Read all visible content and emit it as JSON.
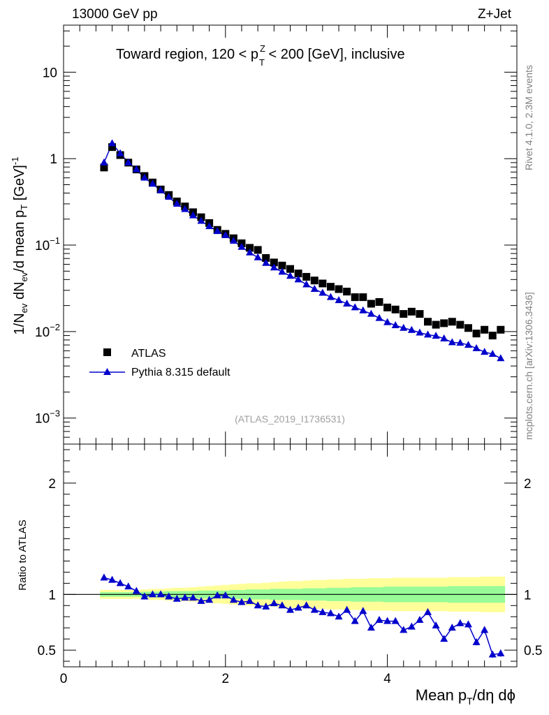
{
  "header": {
    "energy_label": "13000 GeV pp",
    "process_label": "Z+Jet"
  },
  "side_labels": {
    "rivet": "Rivet 4.1.0,  2.3M events",
    "mcplots": "mcplots.cern.ch [arXiv:1306.3436]"
  },
  "chart_data": [
    {
      "type": "scatter",
      "title": "Toward region, 120 < p_T^Z < 200 [GeV], inclusive",
      "title_parts": {
        "pre": "Toward region, 120 < p",
        "sup": "Z",
        "sub": "T",
        "post": " < 200 [GeV], inclusive"
      },
      "ylabel": "1/N_ev dN_ev/d mean p_T [GeV]^-1",
      "ylabel_parts": {
        "a": "1/N",
        "a_sub": "ev",
        "b": " dN",
        "b_sub": "ev",
        "c": "/d mean p",
        "c_sub": "T",
        "d": " [GeV]",
        "d_sup": "-1"
      },
      "yscale": "log",
      "ylim": [
        0.0005,
        35
      ],
      "xlim": [
        0,
        5.6
      ],
      "y_ticks": [
        {
          "value": 0.001,
          "base": "10",
          "exp": "−3"
        },
        {
          "value": 0.01,
          "base": "10",
          "exp": "−2"
        },
        {
          "value": 0.1,
          "base": "10",
          "exp": "−1"
        },
        {
          "value": 1,
          "base": "1",
          "exp": ""
        },
        {
          "value": 10,
          "base": "10",
          "exp": ""
        }
      ],
      "analysis_label": "(ATLAS_2019_I1736531)",
      "legend_position": "bottom-left",
      "x": [
        0.5,
        0.6,
        0.7,
        0.8,
        0.9,
        1.0,
        1.1,
        1.2,
        1.3,
        1.4,
        1.5,
        1.6,
        1.7,
        1.8,
        1.9,
        2.0,
        2.1,
        2.2,
        2.3,
        2.4,
        2.5,
        2.6,
        2.7,
        2.8,
        2.9,
        3.0,
        3.1,
        3.2,
        3.3,
        3.4,
        3.5,
        3.6,
        3.7,
        3.8,
        3.9,
        4.0,
        4.1,
        4.2,
        4.3,
        4.4,
        4.5,
        4.6,
        4.7,
        4.8,
        4.9,
        5.0,
        5.1,
        5.2,
        5.3,
        5.4
      ],
      "series": [
        {
          "name": "ATLAS",
          "marker": "square",
          "color": "#000000",
          "values": [
            0.79,
            1.36,
            1.1,
            0.9,
            0.75,
            0.63,
            0.53,
            0.44,
            0.38,
            0.32,
            0.28,
            0.24,
            0.21,
            0.18,
            0.15,
            0.135,
            0.12,
            0.105,
            0.093,
            0.088,
            0.071,
            0.063,
            0.058,
            0.053,
            0.047,
            0.043,
            0.039,
            0.036,
            0.033,
            0.031,
            0.029,
            0.025,
            0.025,
            0.021,
            0.022,
            0.019,
            0.018,
            0.016,
            0.017,
            0.016,
            0.013,
            0.012,
            0.0125,
            0.013,
            0.012,
            0.011,
            0.0095,
            0.0105,
            0.009,
            0.0105
          ]
        },
        {
          "name": "Pythia 8.315 default",
          "marker": "triangle",
          "color": "#0000cc",
          "values": [
            0.9,
            1.5,
            1.15,
            0.9,
            0.75,
            0.6,
            0.51,
            0.43,
            0.36,
            0.3,
            0.26,
            0.22,
            0.19,
            0.165,
            0.145,
            0.13,
            0.112,
            0.095,
            0.082,
            0.072,
            0.062,
            0.055,
            0.049,
            0.044,
            0.04,
            0.035,
            0.031,
            0.028,
            0.025,
            0.023,
            0.021,
            0.019,
            0.0175,
            0.016,
            0.0143,
            0.0128,
            0.0118,
            0.011,
            0.0104,
            0.0097,
            0.0092,
            0.0089,
            0.0083,
            0.0075,
            0.0074,
            0.007,
            0.0064,
            0.0058,
            0.0055,
            0.0049
          ]
        }
      ]
    },
    {
      "type": "line",
      "ylabel": "Ratio to ATLAS",
      "xlabel": "Mean p_T/dη dϕ",
      "xlabel_parts": {
        "a": "Mean p",
        "a_sub": "T",
        "b": "/dη dϕ"
      },
      "xlim": [
        0,
        5.6
      ],
      "ylim": [
        0.35,
        2.35
      ],
      "x_ticks": [
        0,
        2,
        4
      ],
      "x_tick_labels": [
        "0",
        "2",
        "4"
      ],
      "y_ticks": [
        0.5,
        1,
        2
      ],
      "y_tick_labels": [
        "0.5",
        "1",
        "2"
      ],
      "reference": 1,
      "bands": {
        "green_color": "#98fb98",
        "yellow_color": "#ffff99",
        "green_halfwidth": [
          0.02,
          0.02,
          0.02,
          0.02,
          0.02,
          0.025,
          0.025,
          0.025,
          0.03,
          0.03,
          0.03,
          0.03,
          0.035,
          0.035,
          0.035,
          0.035,
          0.04,
          0.04,
          0.045,
          0.045,
          0.045,
          0.05,
          0.05,
          0.05,
          0.05,
          0.055,
          0.055,
          0.055,
          0.06,
          0.06,
          0.06,
          0.065,
          0.065,
          0.065,
          0.065,
          0.07,
          0.07,
          0.07,
          0.07,
          0.07,
          0.07,
          0.07,
          0.07,
          0.075,
          0.075,
          0.075,
          0.075,
          0.075,
          0.075,
          0.075
        ],
        "yellow_halfwidth": [
          0.04,
          0.04,
          0.04,
          0.04,
          0.04,
          0.045,
          0.05,
          0.05,
          0.055,
          0.06,
          0.06,
          0.065,
          0.07,
          0.075,
          0.08,
          0.085,
          0.09,
          0.095,
          0.1,
          0.1,
          0.105,
          0.11,
          0.115,
          0.12,
          0.12,
          0.125,
          0.13,
          0.13,
          0.135,
          0.135,
          0.14,
          0.14,
          0.14,
          0.145,
          0.145,
          0.145,
          0.15,
          0.15,
          0.15,
          0.15,
          0.15,
          0.15,
          0.15,
          0.155,
          0.155,
          0.155,
          0.155,
          0.16,
          0.16,
          0.16
        ]
      },
      "series": [
        {
          "name": "Pythia 8.315 default / ATLAS",
          "color": "#0000cc",
          "values": [
            1.15,
            1.13,
            1.1,
            1.07,
            1.03,
            0.98,
            1.0,
            1.0,
            0.98,
            0.96,
            0.97,
            0.97,
            0.94,
            0.95,
            0.99,
            0.99,
            0.95,
            0.93,
            0.94,
            0.9,
            0.89,
            0.92,
            0.9,
            0.86,
            0.88,
            0.9,
            0.86,
            0.84,
            0.83,
            0.8,
            0.86,
            0.76,
            0.85,
            0.7,
            0.77,
            0.76,
            0.76,
            0.68,
            0.71,
            0.77,
            0.84,
            0.72,
            0.6,
            0.7,
            0.74,
            0.73,
            0.57,
            0.68,
            0.46,
            0.47
          ],
          "errors": [
            0.01,
            0.01,
            0.01,
            0.01,
            0.01,
            0.01,
            0.01,
            0.01,
            0.01,
            0.01,
            0.01,
            0.01,
            0.01,
            0.01,
            0.01,
            0.012,
            0.012,
            0.012,
            0.012,
            0.012,
            0.013,
            0.013,
            0.013,
            0.014,
            0.014,
            0.015,
            0.015,
            0.015,
            0.016,
            0.016,
            0.017,
            0.017,
            0.018,
            0.018,
            0.02,
            0.02,
            0.02,
            0.02,
            0.022,
            0.022,
            0.022,
            0.025,
            0.025,
            0.025,
            0.025,
            0.028,
            0.028,
            0.03,
            0.03,
            0.03
          ]
        }
      ]
    }
  ]
}
